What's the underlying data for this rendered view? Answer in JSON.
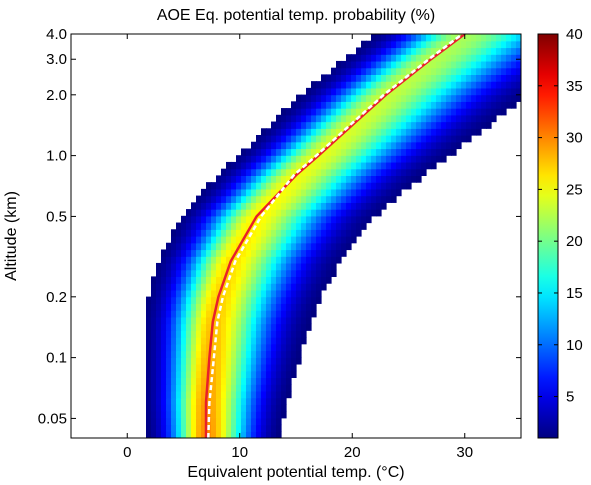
{
  "chart_data": {
    "type": "heatmap",
    "title": "AOE Eq. potential temp. probability (%)",
    "xlabel": "Equivalent potential temp. (°C)",
    "ylabel": "Altitude (km)",
    "x_scale": "linear",
    "y_scale": "log",
    "xlim": [
      -5,
      35
    ],
    "ylim": [
      0.04,
      4.0
    ],
    "x_ticks": [
      0,
      10,
      20,
      30
    ],
    "x_tick_labels": [
      "0",
      "10",
      "20",
      "30"
    ],
    "y_ticks": [
      0.05,
      0.1,
      0.2,
      0.5,
      1.0,
      2.0,
      3.0,
      4.0
    ],
    "y_tick_labels": [
      "0.05",
      "0.1",
      "0.2",
      "0.5",
      "1.0",
      "2.0",
      "3.0",
      "4.0"
    ],
    "colorbar": {
      "range": [
        1,
        40
      ],
      "ticks": [
        5,
        10,
        15,
        20,
        25,
        30,
        35,
        40
      ],
      "tick_labels": [
        "5",
        "10",
        "15",
        "20",
        "25",
        "30",
        "35",
        "40"
      ],
      "colormap": "jet"
    },
    "grid": false,
    "mean_profile": {
      "name": "",
      "color": "#e8202a",
      "style": "solid",
      "altitude_km": [
        0.04,
        0.06,
        0.1,
        0.15,
        0.2,
        0.3,
        0.5,
        0.8,
        1.0,
        1.5,
        2.0,
        3.0,
        4.0
      ],
      "temp_c": [
        7.0,
        7.0,
        7.3,
        7.6,
        8.1,
        9.2,
        11.5,
        15.0,
        17.0,
        20.5,
        23.0,
        27.0,
        30.0
      ]
    },
    "median_profile": {
      "name": "",
      "color": "#ffffff",
      "style": "dashed",
      "altitude_km": [
        0.04,
        0.06,
        0.1,
        0.15,
        0.2,
        0.3,
        0.5,
        0.8,
        1.0,
        1.5,
        2.0,
        3.0,
        4.0
      ],
      "temp_c": [
        7.2,
        7.3,
        7.7,
        8.0,
        8.5,
        9.6,
        11.9,
        14.8,
        16.8,
        20.3,
        22.8,
        26.8,
        29.8
      ]
    },
    "distribution_model": {
      "description_values": "peak probability ridge following mean profile",
      "peak_percent_near_surface": 30,
      "peak_percent_aloft": 22,
      "spread_left_c": 2.0,
      "spread_right_c": 2.5
    }
  }
}
